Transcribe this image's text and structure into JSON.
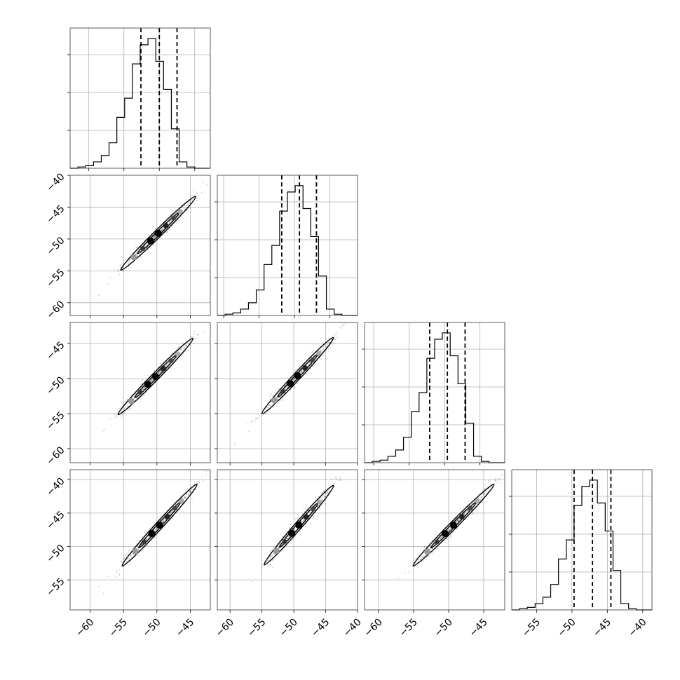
{
  "chart_data": {
    "type": "corner",
    "n_params": 4,
    "param_ranges": [
      [
        -63,
        -42
      ],
      [
        -62,
        -40
      ],
      [
        -62,
        -42
      ],
      [
        -59.5,
        -38.5
      ]
    ],
    "x_ticks": [
      [
        -60,
        -55,
        -50,
        -45
      ],
      [
        -60,
        -55,
        -50,
        -45,
        -40
      ],
      [
        -60,
        -55,
        -50,
        -45
      ],
      [
        -55,
        -50,
        -45,
        -40
      ]
    ],
    "y_ticks": [
      [],
      [
        -60,
        -55,
        -50,
        -45,
        -40
      ],
      [
        -60,
        -55,
        -50,
        -45
      ],
      [
        -55,
        -50,
        -45,
        -40
      ]
    ],
    "grid": true,
    "histograms": [
      {
        "param": 0,
        "bin_edges": [
          -62.6,
          -61.5,
          -60.4,
          -59.3,
          -58.2,
          -57.1,
          -56.0,
          -54.9,
          -53.8,
          -52.7,
          -51.6,
          -50.5,
          -49.4,
          -48.3,
          -47.2,
          -46.1,
          -45.0,
          -43.9,
          -42.8
        ],
        "counts": [
          0,
          1,
          2,
          5,
          10,
          20,
          40,
          55,
          82,
          97,
          102,
          84,
          62,
          31,
          5,
          1,
          0,
          0
        ],
        "quantiles": [
          -52.6,
          -50.0,
          -47.5
        ]
      },
      {
        "param": 1,
        "bin_edges": [
          -60.9,
          -59.8,
          -58.7,
          -57.6,
          -56.5,
          -55.4,
          -54.3,
          -53.2,
          -52.1,
          -51.0,
          -49.9,
          -48.8,
          -47.7,
          -46.6,
          -45.5,
          -44.4,
          -43.3,
          -42.2,
          -41.1
        ],
        "counts": [
          0,
          1,
          2,
          5,
          10,
          20,
          40,
          55,
          82,
          97,
          102,
          84,
          62,
          31,
          5,
          1,
          0,
          0
        ],
        "quantiles": [
          -51.8,
          -49.3,
          -46.9
        ]
      },
      {
        "param": 2,
        "bin_edges": [
          -61.3,
          -60.2,
          -59.1,
          -58.0,
          -56.9,
          -55.8,
          -54.7,
          -53.6,
          -52.5,
          -51.4,
          -50.3,
          -49.2,
          -48.1,
          -47.0,
          -45.9,
          -44.8,
          -43.7,
          -42.6,
          -41.5
        ],
        "counts": [
          0,
          1,
          2,
          5,
          10,
          20,
          40,
          55,
          82,
          97,
          102,
          84,
          62,
          31,
          5,
          1,
          0,
          0
        ],
        "quantiles": [
          -52.1,
          -49.6,
          -47.1
        ]
      },
      {
        "param": 3,
        "bin_edges": [
          -58.5,
          -57.4,
          -56.3,
          -55.2,
          -54.1,
          -53.0,
          -51.9,
          -50.8,
          -49.7,
          -48.6,
          -47.5,
          -46.4,
          -45.3,
          -44.2,
          -43.1,
          -42.0,
          -40.9,
          -39.8,
          -38.7
        ],
        "counts": [
          0,
          1,
          2,
          5,
          10,
          20,
          40,
          55,
          82,
          97,
          102,
          84,
          62,
          31,
          5,
          1,
          0,
          0
        ],
        "quantiles": [
          -49.7,
          -47.1,
          -44.5
        ]
      }
    ],
    "pairs": [
      {
        "row": 1,
        "col": 0,
        "mean": [
          -49.8,
          -49.1
        ],
        "extent": [
          [
            -58.5,
            -58.0
          ],
          [
            -42.0,
            -41.0
          ]
        ]
      },
      {
        "row": 2,
        "col": 0,
        "mean": [
          -50.2,
          -49.7
        ],
        "extent": [
          [
            -59.0,
            -58.5
          ],
          [
            -42.5,
            -42.5
          ]
        ]
      },
      {
        "row": 2,
        "col": 1,
        "mean": [
          -49.4,
          -49.6
        ],
        "extent": [
          [
            -58.0,
            -58.5
          ],
          [
            -41.5,
            -42.5
          ]
        ]
      },
      {
        "row": 3,
        "col": 0,
        "mean": [
          -49.6,
          -46.8
        ],
        "extent": [
          [
            -59.0,
            -56.5
          ],
          [
            -42.5,
            -38.5
          ]
        ]
      },
      {
        "row": 3,
        "col": 1,
        "mean": [
          -49.2,
          -46.8
        ],
        "extent": [
          [
            -58.0,
            -56.5
          ],
          [
            -42.0,
            -39.0
          ]
        ]
      },
      {
        "row": 3,
        "col": 2,
        "mean": [
          -49.3,
          -46.8
        ],
        "extent": [
          [
            -58.5,
            -56.5
          ],
          [
            -41.5,
            -38.5
          ]
        ]
      }
    ]
  }
}
